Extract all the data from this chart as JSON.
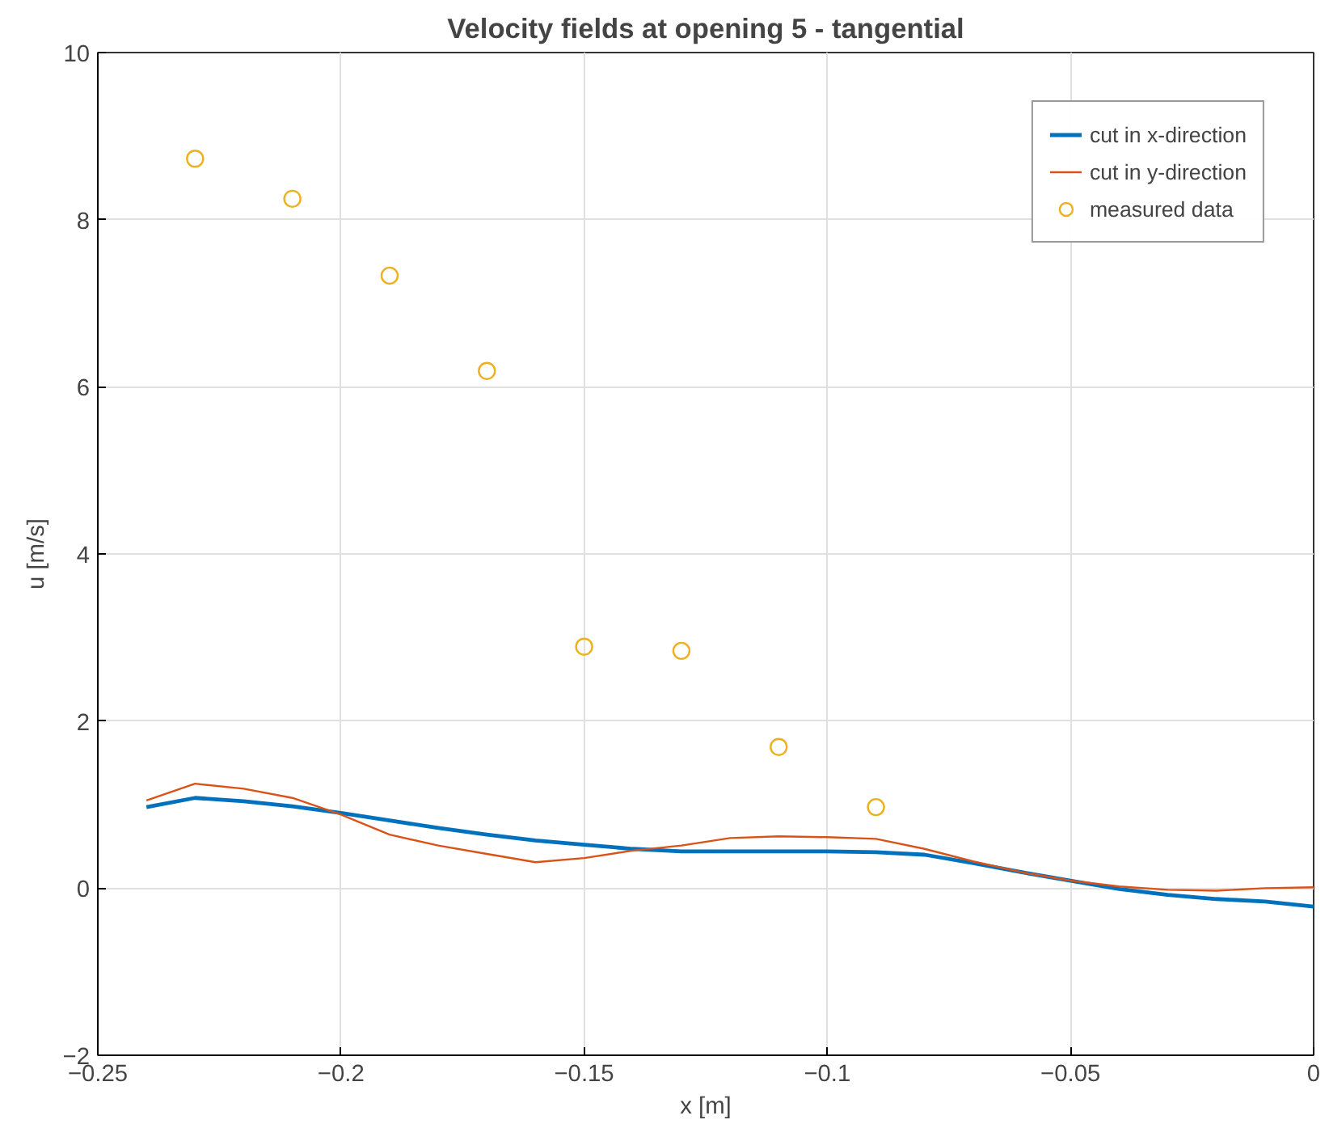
{
  "chart_data": {
    "type": "line",
    "title": "Velocity fields at opening 5 - tangential",
    "xlabel": "x [m]",
    "ylabel": "u [m/s]",
    "xlim": [
      -0.25,
      0
    ],
    "ylim": [
      -2,
      10
    ],
    "xticks": [
      -0.25,
      -0.2,
      -0.15,
      -0.1,
      -0.05,
      0
    ],
    "yticks": [
      -2,
      0,
      2,
      4,
      6,
      8,
      10
    ],
    "grid": true,
    "legend": "top right",
    "line_style": "solid",
    "x": [
      -0.24,
      -0.23,
      -0.22,
      -0.21,
      -0.2,
      -0.19,
      -0.18,
      -0.17,
      -0.16,
      -0.15,
      -0.14,
      -0.13,
      -0.12,
      -0.11,
      -0.1,
      -0.09,
      -0.08,
      -0.07,
      -0.06,
      -0.05,
      -0.04,
      -0.03,
      -0.02,
      -0.01,
      0
    ],
    "series": [
      {
        "name": "cut in x-direction",
        "color": "#0072bd",
        "values": [
          0.97,
          1.08,
          1.04,
          0.98,
          0.9,
          0.81,
          0.72,
          0.64,
          0.57,
          0.52,
          0.47,
          0.44,
          0.44,
          0.44,
          0.44,
          0.43,
          0.4,
          0.3,
          0.19,
          0.09,
          -0.01,
          -0.08,
          -0.13,
          -0.16,
          -0.22
        ]
      },
      {
        "name": "cut in y-direction",
        "color": "#d95319",
        "values": [
          1.05,
          1.25,
          1.19,
          1.08,
          0.88,
          0.64,
          0.51,
          0.41,
          0.31,
          0.36,
          0.45,
          0.51,
          0.6,
          0.62,
          0.61,
          0.59,
          0.47,
          0.32,
          0.19,
          0.09,
          0.02,
          -0.02,
          -0.03,
          0.0,
          0.01
        ]
      },
      {
        "name": "measured data",
        "type": "scatter",
        "marker": "circle",
        "color": "#edb120",
        "x": [
          -0.23,
          -0.21,
          -0.19,
          -0.17,
          -0.15,
          -0.13,
          -0.11,
          -0.09
        ],
        "values": [
          8.73,
          8.25,
          7.33,
          6.19,
          2.89,
          2.84,
          1.69,
          0.97
        ]
      }
    ]
  }
}
